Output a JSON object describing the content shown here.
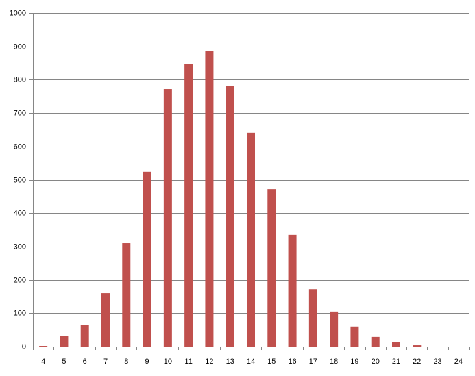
{
  "chart_data": {
    "type": "bar",
    "categories": [
      "4",
      "5",
      "6",
      "7",
      "8",
      "9",
      "10",
      "11",
      "12",
      "13",
      "14",
      "15",
      "16",
      "17",
      "18",
      "19",
      "20",
      "21",
      "22",
      "23",
      "24"
    ],
    "values": [
      2,
      31,
      64,
      160,
      310,
      524,
      772,
      846,
      885,
      782,
      641,
      472,
      335,
      172,
      105,
      60,
      29,
      14,
      4,
      0,
      0
    ],
    "color": "#c0504d",
    "ylim": [
      0,
      1000
    ],
    "yticks": [
      0,
      100,
      200,
      300,
      400,
      500,
      600,
      700,
      800,
      900,
      1000
    ],
    "grid": true
  }
}
